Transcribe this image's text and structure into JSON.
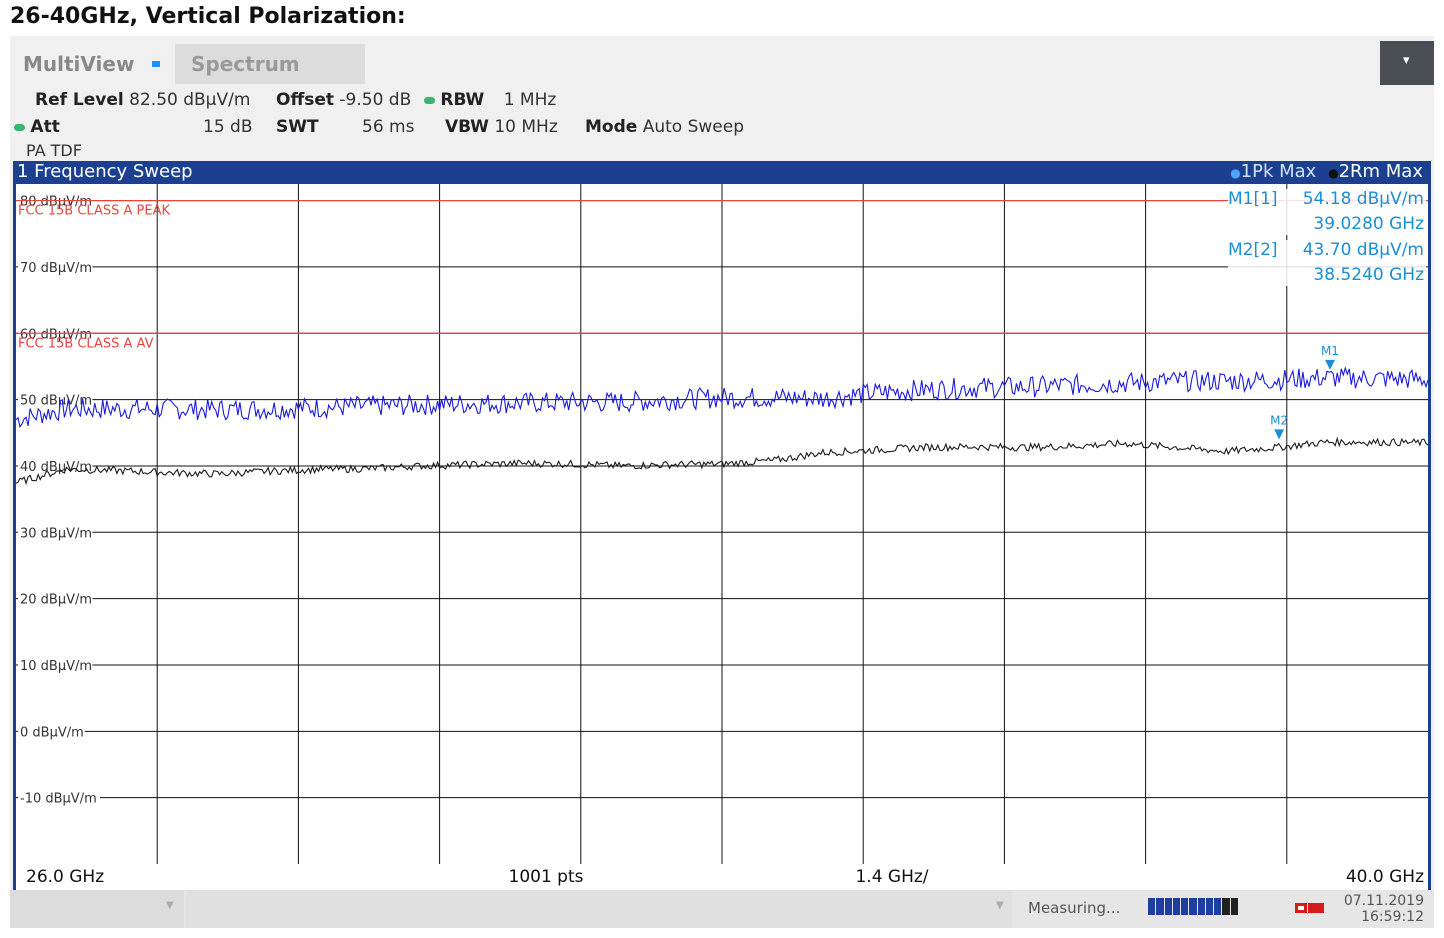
{
  "doc_title": "26-40GHz, Vertical Polarization:",
  "tabs": {
    "multiview": "MultiView",
    "spectrum": "Spectrum"
  },
  "dropdown_icon": "chevron-down-icon",
  "settings": {
    "ref_level_label": "Ref Level",
    "ref_level_value": "82.50 dBµV/m",
    "offset_label": "Offset",
    "offset_value": "-9.50 dB",
    "rbw_label": "RBW",
    "rbw_value": "1 MHz",
    "att_label": "Att",
    "att_value": "15 dB",
    "swt_label": "SWT",
    "swt_value": "56 ms",
    "vbw_label": "VBW",
    "vbw_value": "10 MHz",
    "mode_label": "Mode",
    "mode_value": "Auto Sweep",
    "transducer": "PA TDF"
  },
  "sweep_title": "1 Frequency Sweep",
  "trace_legend": {
    "trace1": "1Pk Max",
    "trace2": "2Rm Max"
  },
  "chart_data": {
    "type": "line",
    "xlim": [
      26.0,
      40.0
    ],
    "ylim": [
      -20,
      82.5
    ],
    "x_unit": "GHz",
    "y_ticks": [
      80,
      70,
      60,
      50,
      40,
      30,
      20,
      10,
      0,
      -10
    ],
    "y_tick_labels": [
      "80 dBµV/m",
      "70 dBµV/m",
      "60 dBµV/m",
      "50 dBµV/m",
      "40 dBµV/m",
      "30 dBµV/m",
      "20 dBµV/m",
      "10 dBµV/m",
      "0 dBµV/m",
      "-10 dBµV/m"
    ],
    "x_labels": {
      "start": "26.0 GHz",
      "points": "1001 pts",
      "span_per_div": "1.4 GHz/",
      "stop": "40.0 GHz"
    },
    "limit_lines": [
      {
        "name": "FCC 15B CLASS A PEAK",
        "value": 80,
        "color": "#e8453c"
      },
      {
        "name": "FCC 15B CLASS A AV",
        "value": 60,
        "color": "#e8453c"
      }
    ],
    "series": [
      {
        "name": "1Pk Max",
        "color": "#1a1adc",
        "x": [
          26.0,
          26.5,
          27.0,
          27.5,
          28.0,
          28.5,
          29.0,
          29.5,
          30.0,
          30.5,
          31.0,
          31.5,
          32.0,
          32.5,
          33.0,
          33.5,
          34.0,
          34.5,
          35.0,
          35.5,
          36.0,
          36.5,
          37.0,
          37.5,
          38.0,
          38.5,
          39.0,
          39.5,
          40.0
        ],
        "y": [
          47.0,
          48.6,
          48.6,
          48.6,
          48.5,
          48.6,
          48.8,
          49.0,
          49.2,
          49.4,
          49.5,
          49.6,
          49.6,
          50.0,
          50.3,
          50.3,
          50.2,
          51.0,
          51.5,
          51.8,
          51.9,
          52.2,
          52.5,
          52.8,
          52.8,
          53.0,
          53.3,
          53.2,
          53.0
        ]
      },
      {
        "name": "2Rm Max",
        "color": "#1a1a1a",
        "x": [
          26.0,
          26.5,
          27.0,
          27.5,
          28.0,
          28.5,
          29.0,
          29.5,
          30.0,
          30.5,
          31.0,
          31.5,
          32.0,
          32.5,
          33.0,
          33.5,
          34.0,
          34.5,
          35.0,
          35.5,
          36.0,
          36.5,
          37.0,
          37.5,
          38.0,
          38.5,
          39.0,
          39.5,
          40.0
        ],
        "y": [
          37.5,
          39.5,
          39.3,
          39.0,
          38.8,
          39.2,
          39.5,
          39.6,
          40.0,
          40.2,
          40.4,
          40.3,
          40.0,
          40.2,
          40.3,
          40.8,
          42.0,
          42.4,
          42.8,
          42.9,
          42.8,
          43.0,
          43.4,
          42.8,
          42.2,
          42.8,
          43.6,
          43.6,
          43.5
        ]
      }
    ],
    "markers": [
      {
        "name": "M1",
        "trace": 1,
        "x": 39.028,
        "y": 54.18,
        "label": "M1[1]",
        "value": "54.18 dBµV/m",
        "freq": "39.0280 GHz"
      },
      {
        "name": "M2",
        "trace": 2,
        "x": 38.524,
        "y": 43.7,
        "label": "M2[2]",
        "value": "43.70 dBµV/m",
        "freq": "38.5240 GHz"
      }
    ],
    "marker_color": "#1a8fd6",
    "grid": true
  },
  "status": {
    "measuring": "Measuring...",
    "date": "07.11.2019",
    "time": "16:59:12",
    "progress_icon": "progress-bar-icon",
    "logo_icon": "rohde-schwarz-logo-icon"
  }
}
